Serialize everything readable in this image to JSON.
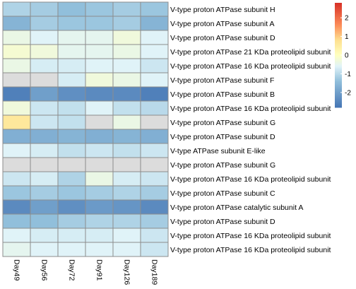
{
  "chart_data": {
    "type": "heatmap",
    "columns": [
      "Day49",
      "Day56",
      "Day72",
      "Day91",
      "Day126",
      "Day189"
    ],
    "rows": [
      "V-type proton ATPase subunit H",
      "V-type proton ATPase subunit A",
      "V-type proton ATPase subunit D",
      "V-type proton ATPase 21 KDa proteolipid subunit",
      "V-type proton ATPase 16 KDa proteolipid subunit",
      "V-type proton ATPase subunit F",
      "V-type proton ATPase subunit B",
      "V-type proton ATPase 16 KDa proteolipid subunit",
      "V-type proton ATPase subunit G",
      "V-type proton ATPase subunit D",
      "V-type ATPase subunit E-like",
      "V-type proton ATPase subunit G",
      "V-type proton ATPase 16 KDa proteolipid subunit",
      "V-type proton ATPase subunit C",
      "V-type proton ATPase catalytic subunit A",
      "V-type proton ATPase subunit D",
      "V-type proton ATPase 16 KDa proteolipid subunit",
      "V-type proton ATPase 16 KDa proteolipid subunit"
    ],
    "values": [
      [
        -1.1,
        -1.2,
        -1.4,
        -1.3,
        -1.2,
        -1.3
      ],
      [
        -1.6,
        -1.2,
        -1.3,
        -1.3,
        -1.2,
        -1.6
      ],
      [
        -0.4,
        -0.6,
        -0.5,
        -0.5,
        -0.3,
        -0.6
      ],
      [
        -0.2,
        -0.3,
        -0.5,
        -0.5,
        -0.4,
        -0.6
      ],
      [
        -0.4,
        -0.7,
        -0.7,
        -0.6,
        -0.6,
        -0.8
      ],
      [
        null,
        null,
        -0.7,
        -0.3,
        -0.4,
        -0.6
      ],
      [
        -2.6,
        -2.0,
        -2.3,
        -2.4,
        -2.4,
        -2.6
      ],
      [
        -0.3,
        -0.8,
        -0.9,
        -0.6,
        -0.9,
        -1.0
      ],
      [
        0.6,
        -0.8,
        -0.9,
        null,
        -0.4,
        null
      ],
      [
        -1.7,
        -1.7,
        -1.6,
        -1.7,
        -1.6,
        -1.7
      ],
      [
        -0.6,
        -0.7,
        -0.9,
        -0.8,
        -0.9,
        -0.8
      ],
      [
        null,
        null,
        null,
        null,
        null,
        null
      ],
      [
        -0.8,
        -0.7,
        -1.1,
        -0.4,
        -0.7,
        -0.8
      ],
      [
        -1.3,
        -1.2,
        -1.3,
        -1.2,
        -1.1,
        -1.2
      ],
      [
        -2.4,
        -2.0,
        -2.3,
        -2.1,
        -2.2,
        -2.4
      ],
      [
        -1.4,
        -1.4,
        -1.2,
        -1.1,
        -1.1,
        -1.2
      ],
      [
        -0.6,
        -0.7,
        -0.7,
        -0.7,
        -0.6,
        -0.8
      ],
      [
        -0.5,
        -0.6,
        -0.6,
        -0.6,
        -0.6,
        -0.8
      ]
    ],
    "na_color": "#dcdcdc",
    "legend": {
      "ticks": [
        2,
        1,
        0,
        -1,
        -2
      ],
      "range": [
        -2.8,
        2.8
      ],
      "placement": "top-right"
    },
    "colors": {
      "high": "#d73027",
      "mid_high": "#fee090",
      "mid": "#ffffbf",
      "mid_low": "#e0f3f8",
      "low": "#4575b4",
      "grid": "#8c8c8c"
    }
  }
}
